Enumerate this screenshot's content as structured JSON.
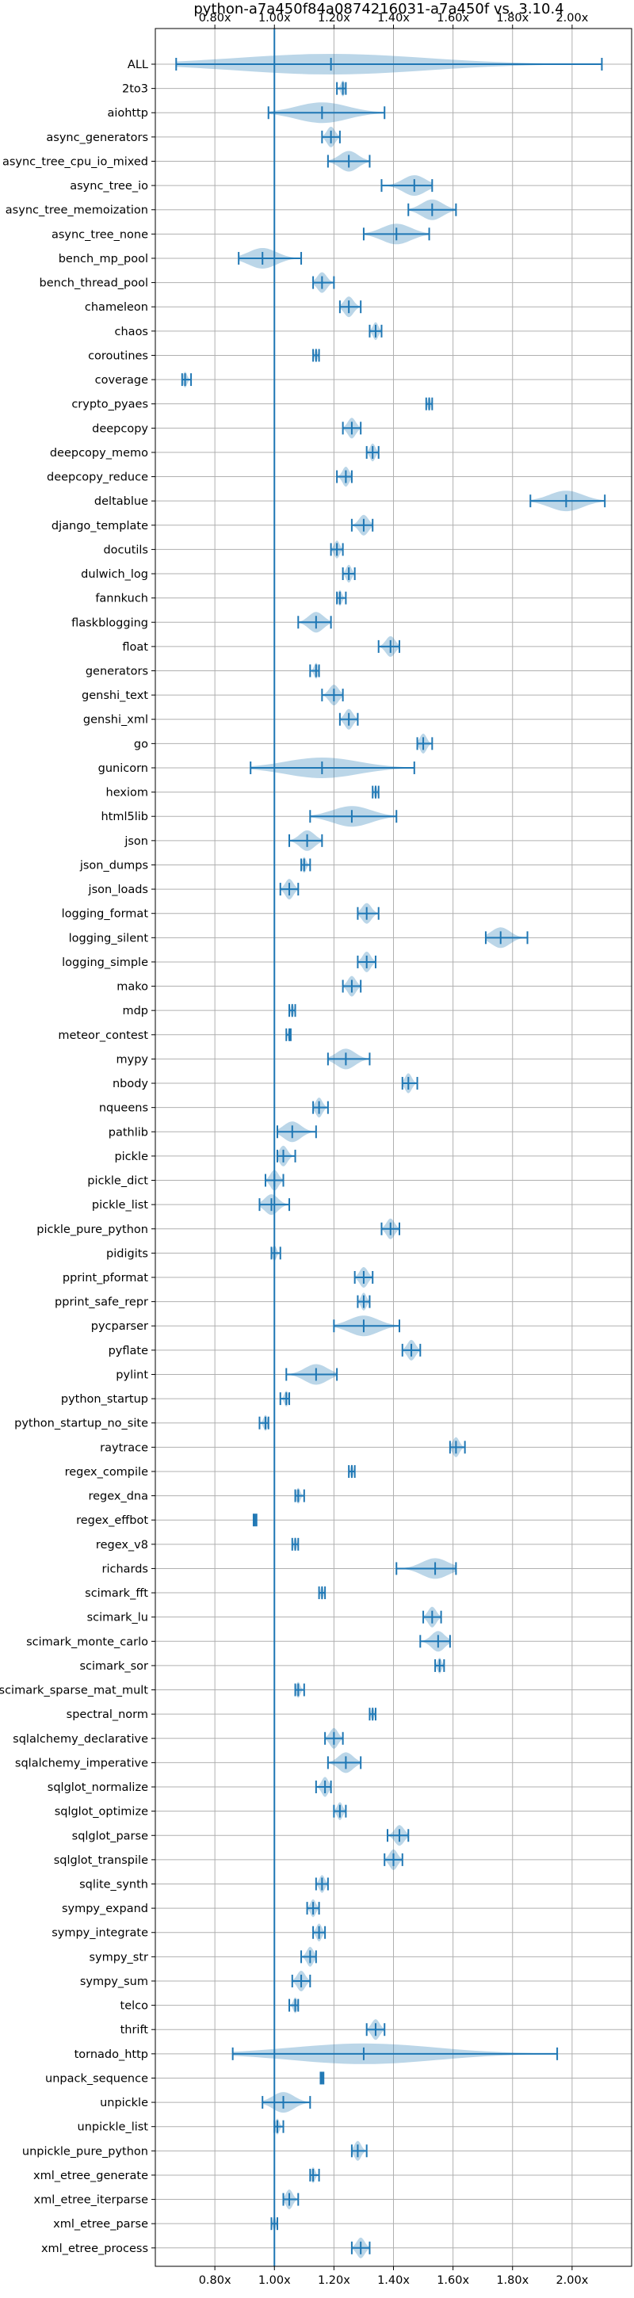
{
  "chart_data": {
    "type": "violin",
    "title": "python-a7a450f84a0874216031-a7a450f vs. 3.10.4",
    "xlabel": "",
    "ylabel": "",
    "xlim": [
      0.6,
      2.2
    ],
    "xticks": [
      0.8,
      1.0,
      1.2,
      1.4,
      1.6,
      1.8,
      2.0
    ],
    "xtick_labels": [
      "0.80x",
      "1.00x",
      "1.20x",
      "1.40x",
      "1.60x",
      "1.80x",
      "2.00x"
    ],
    "reference_line": 1.0,
    "grid": true,
    "colors": {
      "series": "#1f77b4",
      "grid": "#b0b0b0"
    },
    "benchmarks": [
      {
        "name": "ALL",
        "min": 0.67,
        "median": 1.19,
        "max": 2.1
      },
      {
        "name": "2to3",
        "min": 1.21,
        "median": 1.23,
        "max": 1.24
      },
      {
        "name": "aiohttp",
        "min": 0.98,
        "median": 1.16,
        "max": 1.37
      },
      {
        "name": "async_generators",
        "min": 1.16,
        "median": 1.19,
        "max": 1.22
      },
      {
        "name": "async_tree_cpu_io_mixed",
        "min": 1.18,
        "median": 1.25,
        "max": 1.32
      },
      {
        "name": "async_tree_io",
        "min": 1.36,
        "median": 1.47,
        "max": 1.53
      },
      {
        "name": "async_tree_memoization",
        "min": 1.45,
        "median": 1.53,
        "max": 1.61
      },
      {
        "name": "async_tree_none",
        "min": 1.3,
        "median": 1.41,
        "max": 1.52
      },
      {
        "name": "bench_mp_pool",
        "min": 0.88,
        "median": 0.96,
        "max": 1.09
      },
      {
        "name": "bench_thread_pool",
        "min": 1.13,
        "median": 1.16,
        "max": 1.2
      },
      {
        "name": "chameleon",
        "min": 1.22,
        "median": 1.25,
        "max": 1.29
      },
      {
        "name": "chaos",
        "min": 1.32,
        "median": 1.34,
        "max": 1.36
      },
      {
        "name": "coroutines",
        "min": 1.13,
        "median": 1.14,
        "max": 1.15
      },
      {
        "name": "coverage",
        "min": 0.69,
        "median": 0.7,
        "max": 0.72
      },
      {
        "name": "crypto_pyaes",
        "min": 1.51,
        "median": 1.52,
        "max": 1.53
      },
      {
        "name": "deepcopy",
        "min": 1.23,
        "median": 1.26,
        "max": 1.29
      },
      {
        "name": "deepcopy_memo",
        "min": 1.31,
        "median": 1.33,
        "max": 1.35
      },
      {
        "name": "deepcopy_reduce",
        "min": 1.21,
        "median": 1.24,
        "max": 1.26
      },
      {
        "name": "deltablue",
        "min": 1.86,
        "median": 1.98,
        "max": 2.11
      },
      {
        "name": "django_template",
        "min": 1.26,
        "median": 1.3,
        "max": 1.33
      },
      {
        "name": "docutils",
        "min": 1.19,
        "median": 1.21,
        "max": 1.23
      },
      {
        "name": "dulwich_log",
        "min": 1.23,
        "median": 1.25,
        "max": 1.27
      },
      {
        "name": "fannkuch",
        "min": 1.21,
        "median": 1.22,
        "max": 1.24
      },
      {
        "name": "flaskblogging",
        "min": 1.08,
        "median": 1.14,
        "max": 1.19
      },
      {
        "name": "float",
        "min": 1.35,
        "median": 1.39,
        "max": 1.42
      },
      {
        "name": "generators",
        "min": 1.12,
        "median": 1.14,
        "max": 1.15
      },
      {
        "name": "genshi_text",
        "min": 1.16,
        "median": 1.2,
        "max": 1.23
      },
      {
        "name": "genshi_xml",
        "min": 1.22,
        "median": 1.25,
        "max": 1.28
      },
      {
        "name": "go",
        "min": 1.48,
        "median": 1.5,
        "max": 1.53
      },
      {
        "name": "gunicorn",
        "min": 0.92,
        "median": 1.16,
        "max": 1.47
      },
      {
        "name": "hexiom",
        "min": 1.33,
        "median": 1.34,
        "max": 1.35
      },
      {
        "name": "html5lib",
        "min": 1.12,
        "median": 1.26,
        "max": 1.41
      },
      {
        "name": "json",
        "min": 1.05,
        "median": 1.11,
        "max": 1.16
      },
      {
        "name": "json_dumps",
        "min": 1.09,
        "median": 1.1,
        "max": 1.12
      },
      {
        "name": "json_loads",
        "min": 1.02,
        "median": 1.05,
        "max": 1.08
      },
      {
        "name": "logging_format",
        "min": 1.28,
        "median": 1.31,
        "max": 1.35
      },
      {
        "name": "logging_silent",
        "min": 1.71,
        "median": 1.76,
        "max": 1.85
      },
      {
        "name": "logging_simple",
        "min": 1.28,
        "median": 1.31,
        "max": 1.34
      },
      {
        "name": "mako",
        "min": 1.23,
        "median": 1.26,
        "max": 1.29
      },
      {
        "name": "mdp",
        "min": 1.05,
        "median": 1.06,
        "max": 1.07
      },
      {
        "name": "meteor_contest",
        "min": 1.04,
        "median": 1.05,
        "max": 1.055
      },
      {
        "name": "mypy",
        "min": 1.18,
        "median": 1.24,
        "max": 1.32
      },
      {
        "name": "nbody",
        "min": 1.43,
        "median": 1.45,
        "max": 1.48
      },
      {
        "name": "nqueens",
        "min": 1.13,
        "median": 1.15,
        "max": 1.18
      },
      {
        "name": "pathlib",
        "min": 1.01,
        "median": 1.06,
        "max": 1.14
      },
      {
        "name": "pickle",
        "min": 1.01,
        "median": 1.03,
        "max": 1.07
      },
      {
        "name": "pickle_dict",
        "min": 0.97,
        "median": 1.0,
        "max": 1.03
      },
      {
        "name": "pickle_list",
        "min": 0.95,
        "median": 0.99,
        "max": 1.05
      },
      {
        "name": "pickle_pure_python",
        "min": 1.36,
        "median": 1.39,
        "max": 1.42
      },
      {
        "name": "pidigits",
        "min": 0.99,
        "median": 1.0,
        "max": 1.02
      },
      {
        "name": "pprint_pformat",
        "min": 1.27,
        "median": 1.3,
        "max": 1.33
      },
      {
        "name": "pprint_safe_repr",
        "min": 1.28,
        "median": 1.3,
        "max": 1.32
      },
      {
        "name": "pycparser",
        "min": 1.2,
        "median": 1.3,
        "max": 1.42
      },
      {
        "name": "pyflate",
        "min": 1.43,
        "median": 1.46,
        "max": 1.49
      },
      {
        "name": "pylint",
        "min": 1.04,
        "median": 1.14,
        "max": 1.21
      },
      {
        "name": "python_startup",
        "min": 1.02,
        "median": 1.04,
        "max": 1.05
      },
      {
        "name": "python_startup_no_site",
        "min": 0.95,
        "median": 0.97,
        "max": 0.98
      },
      {
        "name": "raytrace",
        "min": 1.59,
        "median": 1.61,
        "max": 1.64
      },
      {
        "name": "regex_compile",
        "min": 1.25,
        "median": 1.26,
        "max": 1.27
      },
      {
        "name": "regex_dna",
        "min": 1.07,
        "median": 1.08,
        "max": 1.1
      },
      {
        "name": "regex_effbot",
        "min": 0.93,
        "median": 0.935,
        "max": 0.94
      },
      {
        "name": "regex_v8",
        "min": 1.06,
        "median": 1.07,
        "max": 1.08
      },
      {
        "name": "richards",
        "min": 1.41,
        "median": 1.54,
        "max": 1.61
      },
      {
        "name": "scimark_fft",
        "min": 1.15,
        "median": 1.16,
        "max": 1.17
      },
      {
        "name": "scimark_lu",
        "min": 1.5,
        "median": 1.53,
        "max": 1.56
      },
      {
        "name": "scimark_monte_carlo",
        "min": 1.49,
        "median": 1.55,
        "max": 1.59
      },
      {
        "name": "scimark_sor",
        "min": 1.54,
        "median": 1.555,
        "max": 1.57
      },
      {
        "name": "scimark_sparse_mat_mult",
        "min": 1.07,
        "median": 1.08,
        "max": 1.1
      },
      {
        "name": "spectral_norm",
        "min": 1.32,
        "median": 1.33,
        "max": 1.34
      },
      {
        "name": "sqlalchemy_declarative",
        "min": 1.17,
        "median": 1.2,
        "max": 1.23
      },
      {
        "name": "sqlalchemy_imperative",
        "min": 1.18,
        "median": 1.24,
        "max": 1.29
      },
      {
        "name": "sqlglot_normalize",
        "min": 1.14,
        "median": 1.17,
        "max": 1.19
      },
      {
        "name": "sqlglot_optimize",
        "min": 1.2,
        "median": 1.22,
        "max": 1.24
      },
      {
        "name": "sqlglot_parse",
        "min": 1.38,
        "median": 1.42,
        "max": 1.45
      },
      {
        "name": "sqlglot_transpile",
        "min": 1.37,
        "median": 1.4,
        "max": 1.43
      },
      {
        "name": "sqlite_synth",
        "min": 1.14,
        "median": 1.16,
        "max": 1.18
      },
      {
        "name": "sympy_expand",
        "min": 1.11,
        "median": 1.13,
        "max": 1.15
      },
      {
        "name": "sympy_integrate",
        "min": 1.13,
        "median": 1.15,
        "max": 1.17
      },
      {
        "name": "sympy_str",
        "min": 1.09,
        "median": 1.12,
        "max": 1.14
      },
      {
        "name": "sympy_sum",
        "min": 1.06,
        "median": 1.09,
        "max": 1.12
      },
      {
        "name": "telco",
        "min": 1.05,
        "median": 1.07,
        "max": 1.08
      },
      {
        "name": "thrift",
        "min": 1.31,
        "median": 1.34,
        "max": 1.37
      },
      {
        "name": "tornado_http",
        "min": 0.86,
        "median": 1.3,
        "max": 1.95
      },
      {
        "name": "unpack_sequence",
        "min": 1.155,
        "median": 1.16,
        "max": 1.165
      },
      {
        "name": "unpickle",
        "min": 0.96,
        "median": 1.03,
        "max": 1.12
      },
      {
        "name": "unpickle_list",
        "min": 1.0,
        "median": 1.01,
        "max": 1.03
      },
      {
        "name": "unpickle_pure_python",
        "min": 1.26,
        "median": 1.28,
        "max": 1.31
      },
      {
        "name": "xml_etree_generate",
        "min": 1.12,
        "median": 1.13,
        "max": 1.15
      },
      {
        "name": "xml_etree_iterparse",
        "min": 1.03,
        "median": 1.05,
        "max": 1.08
      },
      {
        "name": "xml_etree_parse",
        "min": 0.99,
        "median": 1.0,
        "max": 1.01
      },
      {
        "name": "xml_etree_process",
        "min": 1.26,
        "median": 1.29,
        "max": 1.32
      }
    ]
  }
}
